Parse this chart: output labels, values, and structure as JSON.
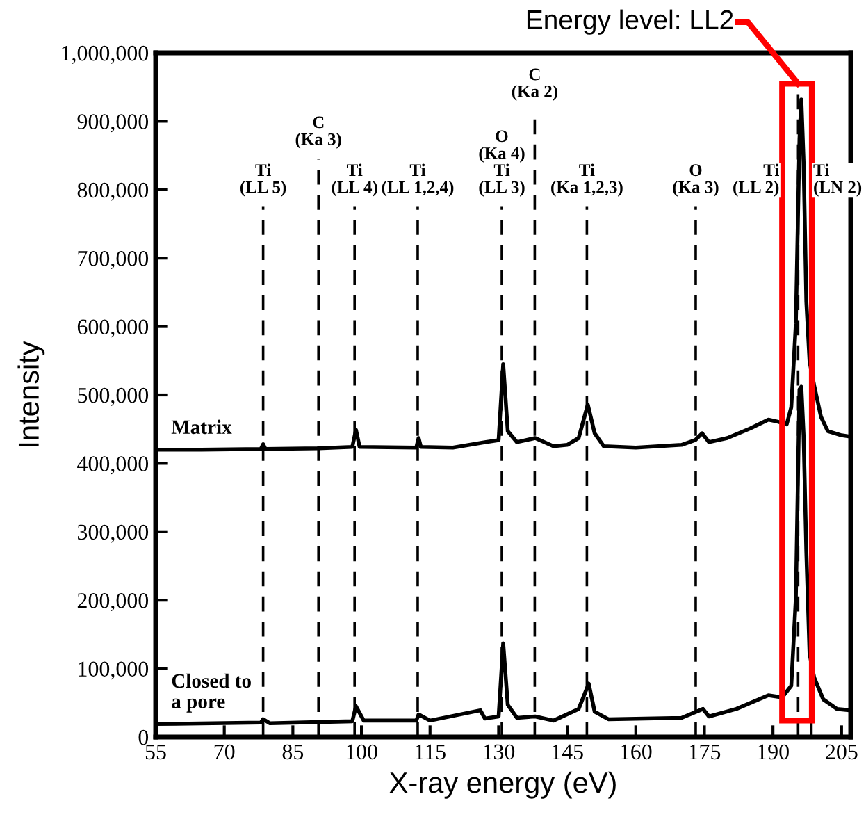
{
  "chart_data": {
    "type": "line",
    "xlabel": "X-ray energy (eV)",
    "ylabel": "Intensity",
    "xlim": [
      55,
      207
    ],
    "ylim": [
      0,
      1000000
    ],
    "xticks": [
      55,
      70,
      85,
      100,
      115,
      130,
      145,
      160,
      175,
      190,
      205
    ],
    "yticks": [
      {
        "value": 0,
        "label": "0"
      },
      {
        "value": 100000,
        "label": "100,000"
      },
      {
        "value": 200000,
        "label": "200,000"
      },
      {
        "value": 300000,
        "label": "300,000"
      },
      {
        "value": 400000,
        "label": "400,000"
      },
      {
        "value": 500000,
        "label": "500,000"
      },
      {
        "value": 600000,
        "label": "600,000"
      },
      {
        "value": 700000,
        "label": "700,000"
      },
      {
        "value": 800000,
        "label": "800,000"
      },
      {
        "value": 900000,
        "label": "900,000"
      },
      {
        "value": 1000000,
        "label": "1,000,000"
      }
    ],
    "grid": false,
    "marker": "none",
    "line_style": "solid",
    "series": [
      {
        "name": "Matrix",
        "color": "#000000",
        "x": [
          55,
          65,
          78,
          78.5,
          79,
          90.6,
          98,
          98.8,
          99.6,
          112,
          112.5,
          113,
          120,
          127,
          130,
          131,
          132,
          134,
          138,
          142,
          145,
          147.5,
          149.5,
          151,
          153,
          160,
          170,
          173,
          174.5,
          176,
          180,
          185,
          189,
          191,
          193,
          194,
          195,
          195.8,
          196.2,
          196.7,
          197.3,
          198,
          199,
          200.5,
          202,
          205,
          207
        ],
        "values": [
          420000,
          420000,
          421000,
          428000,
          421000,
          422000,
          424000,
          449000,
          424000,
          423000,
          437000,
          424000,
          423000,
          431000,
          434000,
          545000,
          447000,
          431000,
          437000,
          425000,
          427000,
          437000,
          486000,
          444000,
          425000,
          423000,
          427000,
          434000,
          444000,
          431000,
          437000,
          451000,
          464000,
          461000,
          457000,
          482000,
          604000,
          874000,
          932000,
          840000,
          636000,
          549000,
          514000,
          468000,
          447000,
          441000,
          439000
        ]
      },
      {
        "name": "Closed to\na pore",
        "color": "#000000",
        "x": [
          55,
          78,
          78.5,
          80,
          98,
          98.8,
          100.5,
          112,
          112.5,
          115,
          126,
          127,
          130,
          131,
          132,
          134,
          138,
          142,
          147.5,
          149.7,
          151,
          154,
          170,
          174.7,
          176,
          182,
          189,
          192,
          194,
          195,
          195.8,
          196.2,
          196.7,
          197.3,
          198,
          199,
          201,
          204,
          207
        ],
        "values": [
          19000,
          21000,
          26000,
          20000,
          23000,
          45000,
          24000,
          24000,
          33000,
          24000,
          39000,
          27000,
          30000,
          137000,
          47000,
          28000,
          30000,
          24000,
          41000,
          78000,
          37000,
          26000,
          28000,
          41000,
          30000,
          41000,
          61000,
          58000,
          75000,
          203000,
          508000,
          512000,
          441000,
          270000,
          122000,
          87000,
          55000,
          41000,
          39000
        ]
      }
    ],
    "ref_lines": [
      {
        "axis": "x",
        "value": 78.5,
        "label": "Ti\n(LL 5)",
        "line_style": "dashed",
        "color": "#000000"
      },
      {
        "axis": "x",
        "value": 98.5,
        "label": "Ti\n(LL 4)",
        "line_style": "dashed",
        "color": "#000000"
      },
      {
        "axis": "x",
        "value": 112.3,
        "label": "Ti\n(LL 1,2,4)",
        "line_style": "dashed",
        "color": "#000000"
      },
      {
        "axis": "x",
        "value": 130.7,
        "label": "O\n(Ka 4)\nTi\n(LL 3)",
        "line_style": "dashed",
        "color": "#000000"
      },
      {
        "axis": "x",
        "value": 149.3,
        "label": "Ti\n(Ka 1,2,3)",
        "line_style": "dashed",
        "color": "#000000"
      },
      {
        "axis": "x",
        "value": 173.1,
        "label": "O\n(Ka 3)",
        "line_style": "dashed",
        "color": "#000000"
      },
      {
        "axis": "x",
        "value": 195.5,
        "label": "Ti\n(LL 2)",
        "line_style": "dashed",
        "color": "#000000"
      },
      {
        "axis": "x",
        "value": 198.4,
        "label": "Ti\n(LN 2)",
        "line_style": "dashed",
        "color": "#000000"
      },
      {
        "axis": "x",
        "value": 90.6,
        "label": "C\n(Ka 3)",
        "line_style": "dashed",
        "color": "#000000"
      },
      {
        "axis": "x",
        "value": 137.9,
        "label": "C\n(Ka 2)",
        "line_style": "dashed",
        "color": "#000000"
      }
    ],
    "annotations": [
      {
        "text": "Energy level: LL2",
        "x": 195.5,
        "y": 955000
      }
    ]
  }
}
